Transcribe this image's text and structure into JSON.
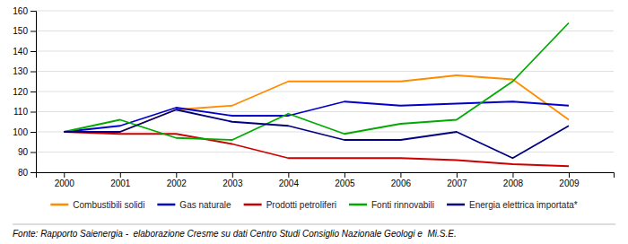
{
  "chart_data": {
    "type": "line",
    "x": [
      2000,
      2001,
      2002,
      2003,
      2004,
      2005,
      2006,
      2007,
      2008,
      2009
    ],
    "series": [
      {
        "name": "Combustibili solidi",
        "color": "#FF8C00",
        "values": [
          100,
          100,
          111,
          113,
          125,
          125,
          125,
          128,
          126,
          106
        ]
      },
      {
        "name": "Gas naturale",
        "color": "#0000CD",
        "values": [
          100,
          103,
          112,
          108,
          108,
          115,
          113,
          114,
          115,
          113
        ]
      },
      {
        "name": "Prodotti petroliferi",
        "color": "#CC0000",
        "values": [
          100,
          99,
          99,
          94,
          87,
          87,
          87,
          86,
          84,
          83
        ]
      },
      {
        "name": "Fonti rinnovabili",
        "color": "#00AA00",
        "values": [
          100,
          106,
          97,
          96,
          109,
          99,
          104,
          106,
          125,
          154
        ]
      },
      {
        "name": "Energia elettrica importata*",
        "color": "#000080",
        "values": [
          100,
          100,
          111,
          105,
          103,
          96,
          96,
          100,
          87,
          103
        ]
      }
    ],
    "xlim": [
      1999.5,
      2009.8
    ],
    "xticks": [
      2000,
      2001,
      2002,
      2003,
      2004,
      2005,
      2006,
      2007,
      2008,
      2009
    ],
    "ylim": [
      80,
      160
    ],
    "yticks": [
      80,
      90,
      100,
      110,
      120,
      130,
      140,
      150,
      160
    ],
    "grid": true,
    "legend": "bottom",
    "annotations": [
      "Fonte: Rapporto Saienergia -  elaborazione Cresme su dati Centro Studi Consiglio Nazionale Geologi e  Mi.S.E."
    ]
  }
}
